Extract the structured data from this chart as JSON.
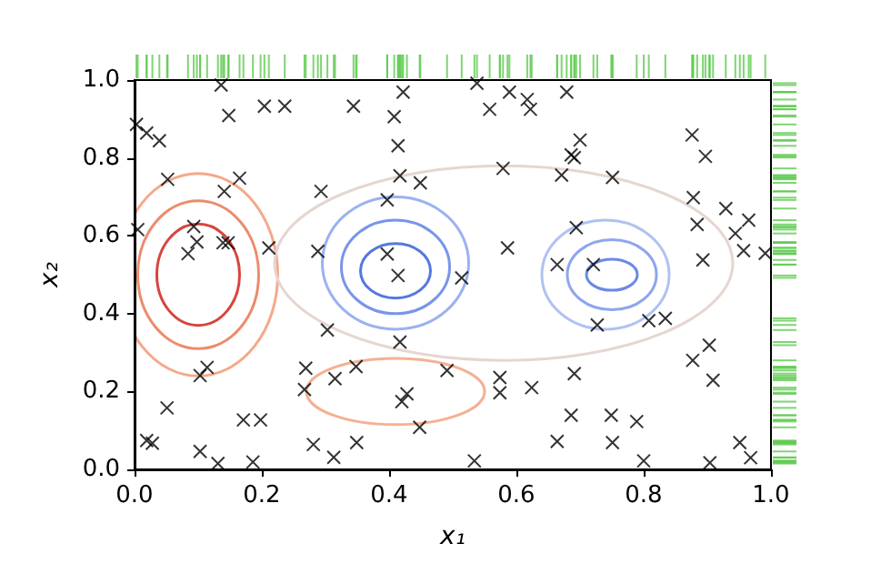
{
  "chart_data": {
    "type": "scatter",
    "xlabel": "x₁",
    "ylabel": "x₂",
    "xlim": [
      0,
      1
    ],
    "ylim": [
      0,
      1
    ],
    "xticks": [
      {
        "value": 0,
        "label": "0.0"
      },
      0.2,
      0.4,
      0.6,
      0.8,
      {
        "value": 1,
        "label": "1.0"
      }
    ],
    "yticks": [
      {
        "value": 0,
        "label": "0.0"
      },
      0.2,
      0.4,
      0.6,
      0.8,
      {
        "value": 1,
        "label": "1.0"
      }
    ],
    "grid": false,
    "marker": "cross",
    "series": [
      {
        "color": "#000000",
        "x": [
          0.136,
          0.148,
          0.204,
          0.236,
          0.003,
          0.019,
          0.039,
          0.052,
          0.165,
          0.141,
          0.005,
          0.093,
          0.098,
          0.084,
          0.139,
          0.147,
          0.211,
          0.344,
          0.408,
          0.422,
          0.414,
          0.293,
          0.417,
          0.449,
          0.397,
          0.288,
          0.397,
          0.414,
          0.538,
          0.589,
          0.617,
          0.622,
          0.558,
          0.679,
          0.7,
          0.686,
          0.691,
          0.579,
          0.671,
          0.751,
          0.876,
          0.897,
          0.878,
          0.929,
          0.884,
          0.965,
          0.944,
          0.694,
          0.586,
          0.957,
          0.991,
          0.664,
          0.721,
          0.893,
          0.514,
          0.303,
          0.417,
          0.103,
          0.114,
          0.269,
          0.267,
          0.315,
          0.348,
          0.051,
          0.428,
          0.42,
          0.448,
          0.019,
          0.028,
          0.171,
          0.198,
          0.103,
          0.131,
          0.186,
          0.281,
          0.313,
          0.349,
          0.727,
          0.808,
          0.834,
          0.903,
          0.877,
          0.909,
          0.491,
          0.574,
          0.574,
          0.624,
          0.691,
          0.686,
          0.749,
          0.789,
          0.664,
          0.751,
          0.951,
          0.968,
          0.534,
          0.8,
          0.904
        ],
        "values": [
          0.987,
          0.909,
          0.933,
          0.933,
          0.886,
          0.864,
          0.844,
          0.745,
          0.748,
          0.714,
          0.616,
          0.624,
          0.584,
          0.554,
          0.582,
          0.582,
          0.569,
          0.933,
          0.906,
          0.969,
          0.831,
          0.714,
          0.754,
          0.736,
          0.692,
          0.56,
          0.553,
          0.498,
          0.992,
          0.969,
          0.95,
          0.925,
          0.925,
          0.969,
          0.846,
          0.808,
          0.801,
          0.773,
          0.756,
          0.75,
          0.859,
          0.804,
          0.698,
          0.67,
          0.629,
          0.64,
          0.606,
          0.621,
          0.569,
          0.562,
          0.555,
          0.526,
          0.526,
          0.538,
          0.492,
          0.358,
          0.327,
          0.241,
          0.262,
          0.26,
          0.205,
          0.233,
          0.264,
          0.158,
          0.194,
          0.174,
          0.108,
          0.074,
          0.067,
          0.127,
          0.127,
          0.046,
          0.015,
          0.019,
          0.064,
          0.031,
          0.069,
          0.371,
          0.382,
          0.388,
          0.319,
          0.28,
          0.229,
          0.254,
          0.236,
          0.197,
          0.21,
          0.246,
          0.139,
          0.139,
          0.123,
          0.072,
          0.069,
          0.069,
          0.03,
          0.022,
          0.022,
          0.017
        ]
      }
    ]
  }
}
